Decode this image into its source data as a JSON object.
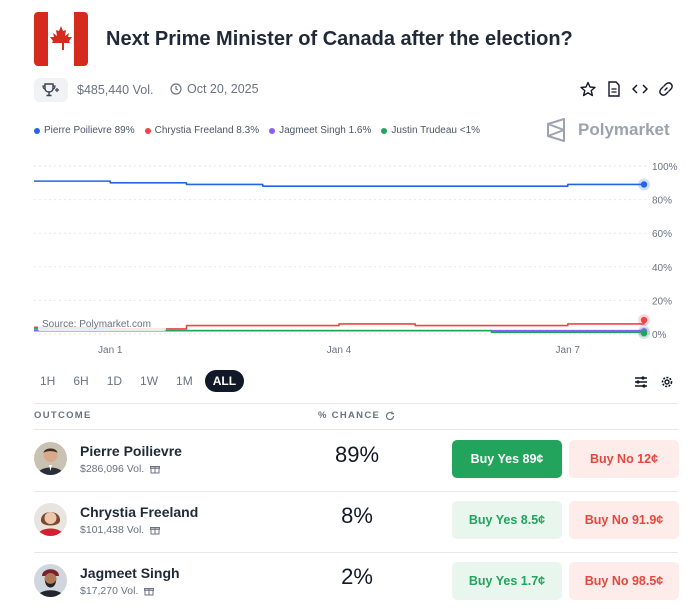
{
  "header": {
    "title": "Next Prime Minister of Canada after the election?"
  },
  "meta": {
    "volume": "$485,440 Vol.",
    "date": "Oct 20, 2025"
  },
  "legend": [
    {
      "label": "Pierre Poilievre 89%",
      "color": "#2563eb"
    },
    {
      "label": "Chrystia Freeland 8.3%",
      "color": "#ef4444"
    },
    {
      "label": "Jagmeet Singh 1.6%",
      "color": "#8b5cf6"
    },
    {
      "label": "Justin Trudeau <1%",
      "color": "#22a45d"
    }
  ],
  "brand": "Polymarket",
  "chart_data": {
    "type": "line",
    "x": [
      "Dec 31",
      "Jan 1",
      "Jan 2",
      "Jan 3",
      "Jan 4",
      "Jan 5",
      "Jan 6",
      "Jan 7",
      "Jan 8"
    ],
    "x_tick_labels": [
      "Jan 1",
      "Jan 4",
      "Jan 7"
    ],
    "y_ticks": [
      "100%",
      "80%",
      "60%",
      "40%",
      "20%",
      "0%"
    ],
    "ylim": [
      0,
      100
    ],
    "grid": true,
    "source_label": "Source: Polymarket.com",
    "series": [
      {
        "name": "Pierre Poilievre",
        "color": "#2563eb",
        "values": [
          91,
          90,
          89,
          88,
          88,
          88,
          88,
          89,
          89
        ]
      },
      {
        "name": "Chrystia Freeland",
        "color": "#ef4444",
        "values": [
          4,
          3,
          5,
          5,
          6,
          5,
          5,
          6,
          8.3
        ]
      },
      {
        "name": "Jagmeet Singh",
        "color": "#8b5cf6",
        "values": [
          2,
          2,
          2,
          2,
          2,
          2,
          2,
          2,
          1.6
        ]
      },
      {
        "name": "Justin Trudeau",
        "color": "#22a45d",
        "values": [
          3,
          2,
          2,
          2,
          2,
          2,
          1,
          1,
          0.5
        ]
      }
    ]
  },
  "ranges": [
    "1H",
    "6H",
    "1D",
    "1W",
    "1M",
    "ALL"
  ],
  "table": {
    "outcome_header": "OUTCOME",
    "chance_header": "% CHANCE",
    "rows": [
      {
        "name": "Pierre Poilievre",
        "volume": "$286,096 Vol.",
        "chance": "89%",
        "yes": "Buy Yes 89¢",
        "no": "Buy No 12¢"
      },
      {
        "name": "Chrystia Freeland",
        "volume": "$101,438 Vol.",
        "chance": "8%",
        "yes": "Buy Yes 8.5¢",
        "no": "Buy No 91.9¢"
      },
      {
        "name": "Jagmeet Singh",
        "volume": "$17,270 Vol.",
        "chance": "2%",
        "yes": "Buy Yes 1.7¢",
        "no": "Buy No 98.5¢"
      }
    ]
  },
  "colors": {
    "yes_strong": "#22a45d",
    "no": "#e2483d",
    "flag_red": "#d52b1e"
  }
}
